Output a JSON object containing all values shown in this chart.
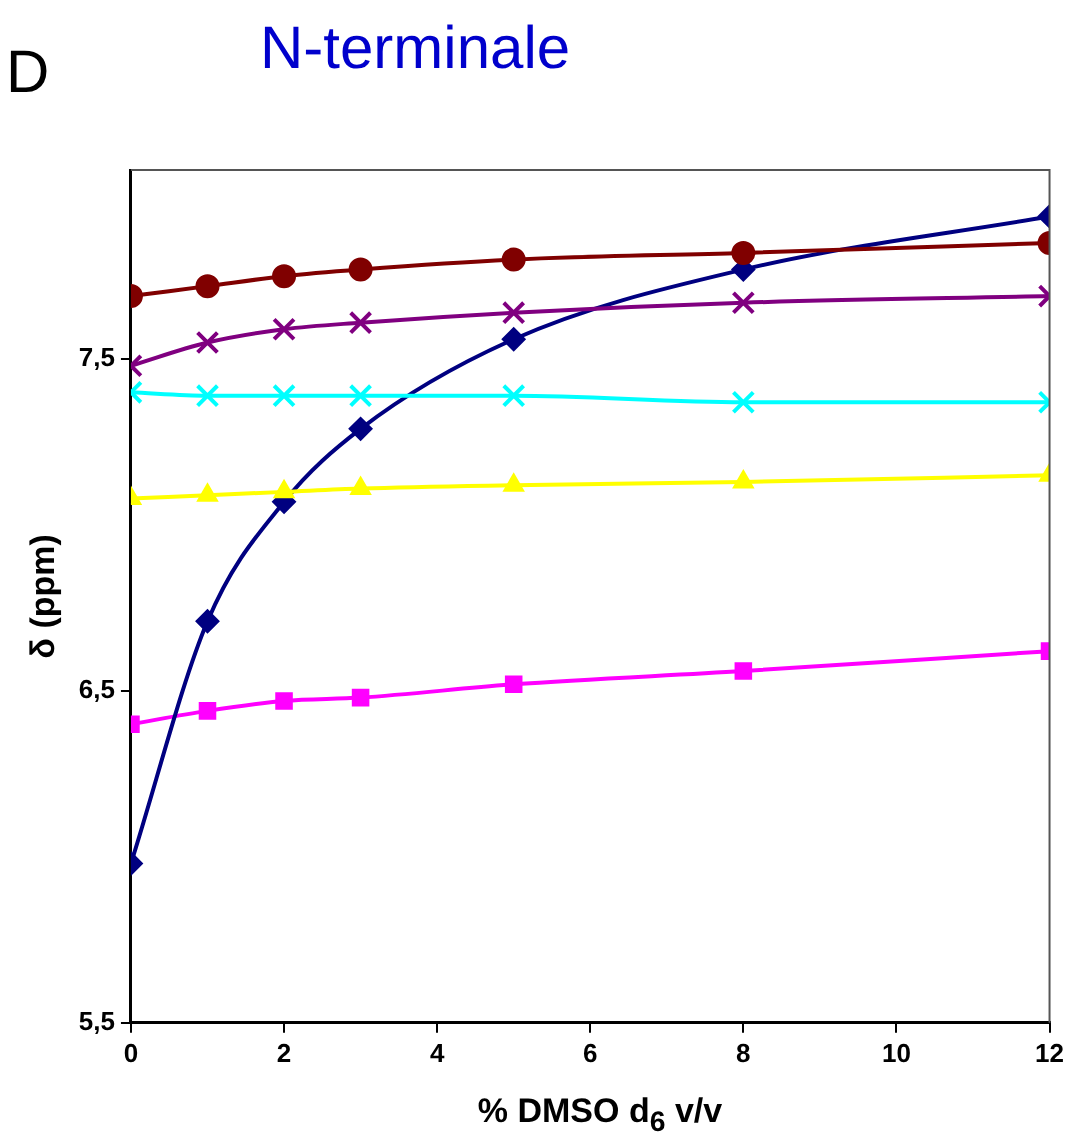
{
  "chart_data": {
    "type": "line",
    "title": "N-terminale",
    "annotations": [
      "D"
    ],
    "xlabel": "% DMSO d$_{6}$ v/v",
    "ylabel": "δ (ppm)",
    "x": [
      0,
      1,
      2,
      3,
      5,
      8,
      12
    ],
    "xlim": [
      0,
      12
    ],
    "xticks": [
      0,
      2,
      4,
      6,
      8,
      10,
      12
    ],
    "ylim": [
      5.5,
      8.07
    ],
    "yticks": [
      {
        "value": 5.5,
        "label": "5,5"
      },
      {
        "value": 6.5,
        "label": "6,5"
      },
      {
        "value": 7.5,
        "label": "7,5"
      }
    ],
    "grid": false,
    "legend": false,
    "line_style": "solid",
    "series": [
      {
        "color": "#800000",
        "marker": "circle",
        "values": [
          7.69,
          7.72,
          7.75,
          7.77,
          7.8,
          7.82,
          7.85
        ]
      },
      {
        "color": "#800080",
        "marker": "cross",
        "values": [
          7.48,
          7.55,
          7.59,
          7.61,
          7.64,
          7.67,
          7.69
        ]
      },
      {
        "color": "#00ffff",
        "marker": "cross",
        "values": [
          7.4,
          7.39,
          7.39,
          7.39,
          7.39,
          7.37,
          7.37
        ]
      },
      {
        "color": "#ffff00",
        "marker": "triangle",
        "values": [
          7.08,
          7.09,
          7.1,
          7.11,
          7.12,
          7.13,
          7.15
        ]
      },
      {
        "color": "#000080",
        "marker": "diamond",
        "values": [
          5.98,
          6.71,
          7.07,
          7.29,
          7.56,
          7.77,
          7.93
        ]
      },
      {
        "color": "#ff00ff",
        "marker": "square",
        "values": [
          6.4,
          6.44,
          6.47,
          6.48,
          6.52,
          6.56,
          6.62
        ]
      }
    ]
  }
}
